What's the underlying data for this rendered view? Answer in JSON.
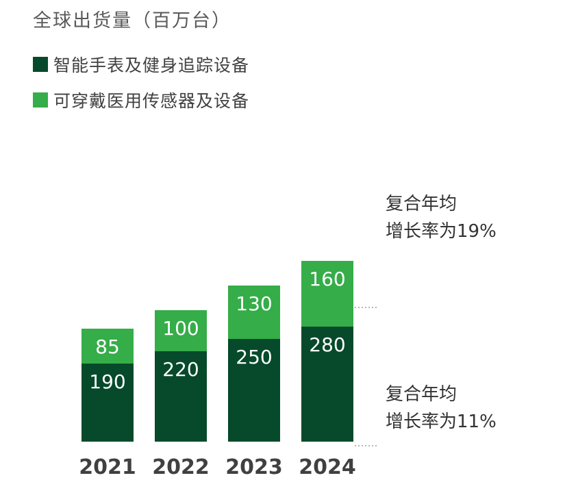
{
  "chart_data": {
    "type": "bar",
    "stacked": true,
    "title": "全球出货量（百万台）",
    "categories": [
      "2021",
      "2022",
      "2023",
      "2024"
    ],
    "series": [
      {
        "name": "智能手表及健身追踪设备",
        "values": [
          190,
          220,
          250,
          280
        ],
        "color": "#064a2b"
      },
      {
        "name": "可穿戴医用传感器及设备",
        "values": [
          85,
          100,
          130,
          160
        ],
        "color": "#35ad48"
      }
    ],
    "legend_position": "top-left",
    "grid": false,
    "annotations": [
      {
        "lines": [
          "复合年均",
          "增长率为19%"
        ],
        "series": "可穿戴医用传感器及设备"
      },
      {
        "lines": [
          "复合年均",
          "增长率为11%"
        ],
        "series": "智能手表及健身追踪设备"
      }
    ]
  }
}
